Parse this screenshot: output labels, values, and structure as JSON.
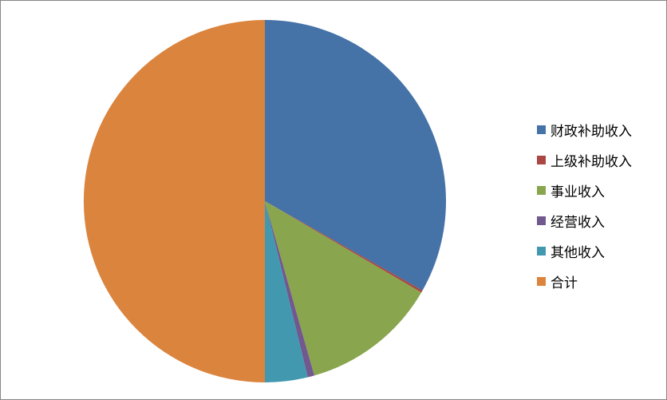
{
  "chart_data": {
    "type": "pie",
    "title": "",
    "start_angle": "top, clockwise",
    "legend_position": "right",
    "slices": [
      {
        "label": "财政补助收入",
        "value": 33.2,
        "color": "#4572A7"
      },
      {
        "label": "上级补助收入",
        "value": 0.2,
        "color": "#AA4643"
      },
      {
        "label": "事业收入",
        "value": 12.2,
        "color": "#89A54E"
      },
      {
        "label": "经营收入",
        "value": 0.6,
        "color": "#71588F"
      },
      {
        "label": "其他收入",
        "value": 3.8,
        "color": "#4198AF"
      },
      {
        "label": "合计",
        "value": 50.0,
        "color": "#DB843D"
      }
    ]
  }
}
